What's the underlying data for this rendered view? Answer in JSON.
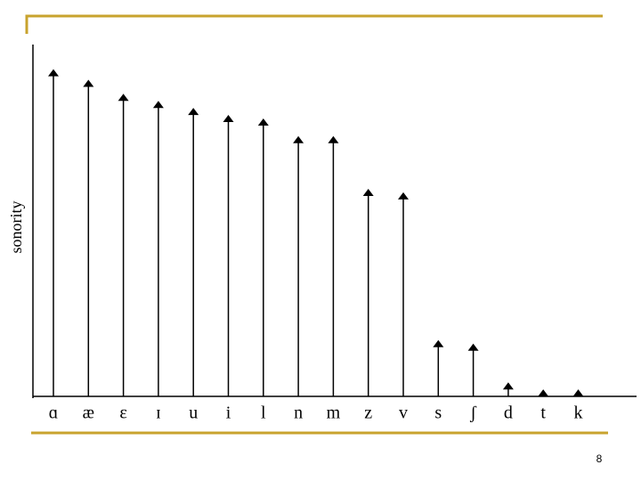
{
  "chart_data": {
    "type": "arrow",
    "y_label": "sonority",
    "categories": [
      "ɑ",
      "æ",
      "ɛ",
      "ɪ",
      "u",
      "i",
      "l",
      "n",
      "m",
      "z",
      "v",
      "s",
      "ʃ",
      "d",
      "t",
      "k"
    ],
    "values": [
      93,
      90,
      86,
      84,
      82,
      80,
      79,
      74,
      74,
      59,
      58,
      16,
      15,
      4,
      2,
      2
    ],
    "color": "#000000",
    "ylim": [
      0,
      100
    ]
  },
  "slide": {
    "page_number": "8"
  }
}
